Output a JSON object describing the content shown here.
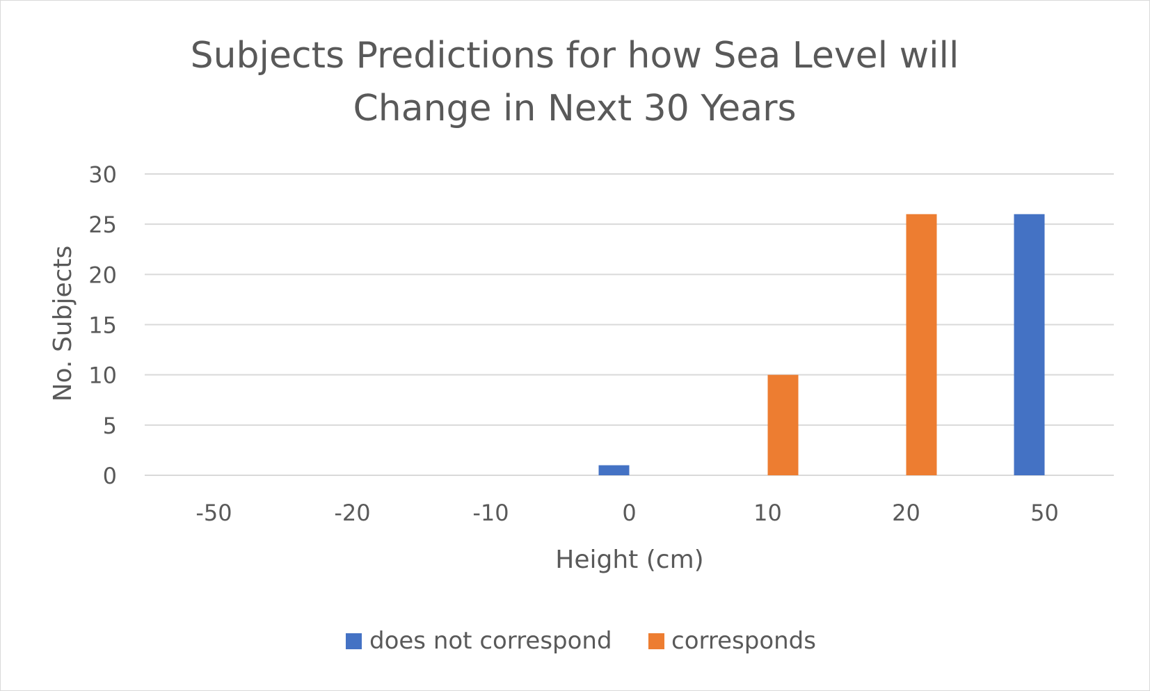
{
  "chart_data": {
    "type": "bar",
    "title_lines": [
      "Subjects Predictions for how Sea Level will",
      "Change in Next 30 Years"
    ],
    "xlabel": "Height (cm)",
    "ylabel": "No. Subjects",
    "categories": [
      "-50",
      "-20",
      "-10",
      "0",
      "10",
      "20",
      "50"
    ],
    "series": [
      {
        "name": "does not correspond",
        "color": "#4472c4",
        "values": [
          0,
          0,
          0,
          1,
          0,
          0,
          26
        ]
      },
      {
        "name": "corresponds",
        "color": "#ed7d31",
        "values": [
          0,
          0,
          0,
          0,
          10,
          26,
          0
        ]
      }
    ],
    "ylim": [
      0,
      30
    ],
    "yticks": [
      0,
      5,
      10,
      15,
      20,
      25,
      30
    ],
    "grid": true,
    "legend": "bottom"
  }
}
